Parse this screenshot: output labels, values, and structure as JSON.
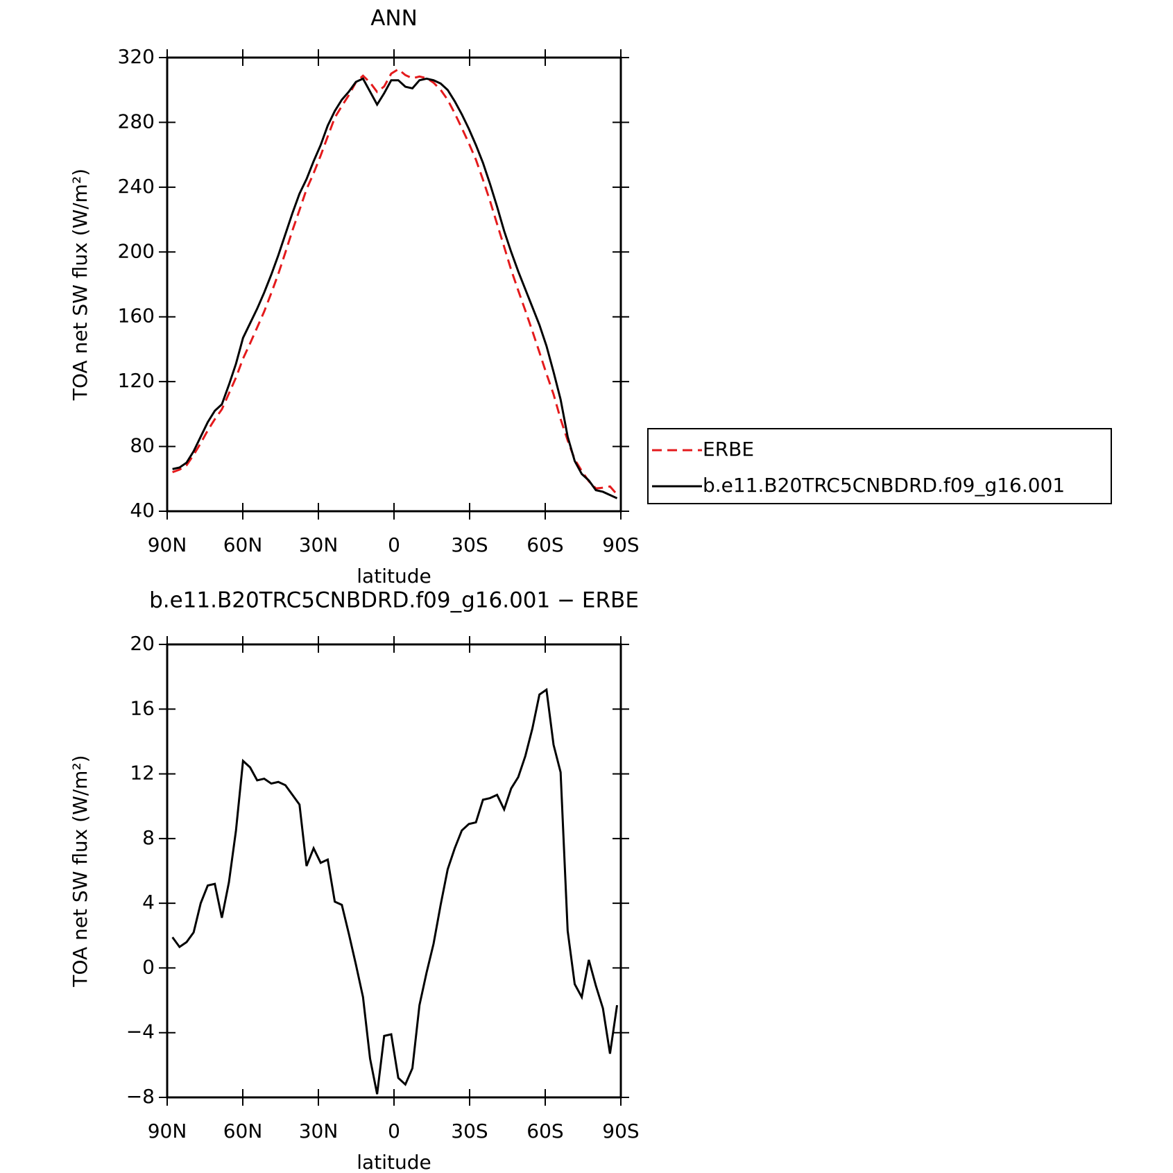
{
  "chart_data": [
    {
      "type": "line",
      "title": "ANN",
      "xlabel": "latitude",
      "ylabel": "TOA net SW flux (W/m²)",
      "x": [
        87.9,
        85.1,
        82.3,
        79.5,
        76.7,
        73.9,
        71.1,
        68.3,
        65.5,
        62.7,
        59.9,
        57.1,
        54.3,
        51.5,
        48.7,
        45.9,
        43.1,
        40.3,
        37.5,
        34.7,
        31.9,
        29.1,
        26.3,
        23.5,
        20.7,
        17.9,
        15.1,
        12.3,
        9.5,
        6.7,
        3.9,
        1.1,
        -1.7,
        -4.5,
        -7.3,
        -10.1,
        -12.9,
        -15.7,
        -18.5,
        -21.3,
        -24.1,
        -26.9,
        -29.7,
        -32.5,
        -35.3,
        -38.1,
        -40.9,
        -43.7,
        -46.5,
        -49.3,
        -52.1,
        -54.9,
        -57.7,
        -60.5,
        -63.3,
        -66.1,
        -68.9,
        -71.7,
        -74.5,
        -77.3,
        -80.1,
        -82.9,
        -85.7,
        -88.5
      ],
      "series": [
        {
          "name": "ERBE",
          "color": "#e41a1c",
          "style": "dashed",
          "values": [
            64.1,
            65.7,
            68.4,
            74.8,
            82.0,
            89.9,
            96.8,
            102.9,
            112.7,
            122.5,
            134.2,
            143.6,
            153.4,
            163.3,
            174.6,
            186.5,
            199.7,
            213.3,
            225.9,
            238.7,
            248.6,
            259.5,
            271.3,
            282.9,
            290.1,
            296.9,
            304.8,
            308.8,
            304.6,
            298.8,
            302.2,
            310.1,
            312.8,
            309.2,
            307.2,
            308.3,
            307.3,
            304.5,
            300.1,
            293.9,
            285.6,
            276.5,
            267.1,
            257.0,
            244.6,
            231.5,
            217.3,
            203.2,
            188.9,
            176.2,
            163.9,
            151.2,
            138.1,
            124.8,
            112.2,
            96.9,
            83.7,
            72.0,
            64.8,
            58.5,
            54.1,
            54.5,
            55.3,
            50.3
          ]
        },
        {
          "name": "b.e11.B20TRC5CNBDRD.f09_g16.001",
          "color": "#000000",
          "style": "solid",
          "values": [
            66,
            67,
            70,
            77,
            86,
            95,
            102,
            106,
            118,
            131,
            147,
            156,
            165,
            175,
            186,
            198,
            211,
            224,
            236,
            245,
            256,
            266,
            278,
            287,
            294,
            299,
            305,
            307,
            299,
            291,
            298,
            306,
            306,
            302,
            301,
            306,
            307,
            306,
            304,
            300,
            293,
            285,
            276,
            266,
            255,
            242,
            228,
            213,
            200,
            188,
            177,
            166,
            155,
            142,
            126,
            109,
            86,
            71,
            63,
            59,
            53,
            52,
            50,
            48
          ]
        }
      ],
      "xlim": [
        90,
        -90
      ],
      "xticks": [
        {
          "value": 90,
          "label": "90N"
        },
        {
          "value": 60,
          "label": "60N"
        },
        {
          "value": 30,
          "label": "30N"
        },
        0,
        {
          "value": -30,
          "label": "30S"
        },
        {
          "value": -60,
          "label": "60S"
        },
        {
          "value": -90,
          "label": "90S"
        }
      ],
      "ylim": [
        40,
        320
      ],
      "yticks": [
        40,
        80,
        120,
        160,
        200,
        240,
        280,
        320
      ],
      "legend": "outside right"
    },
    {
      "type": "line",
      "title": "b.e11.B20TRC5CNBDRD.f09_g16.001 − ERBE",
      "xlabel": "latitude",
      "ylabel": "TOA net SW flux (W/m²)",
      "x": [
        87.9,
        85.1,
        82.3,
        79.5,
        76.7,
        73.9,
        71.1,
        68.3,
        65.5,
        62.7,
        59.9,
        57.1,
        54.3,
        51.5,
        48.7,
        45.9,
        43.1,
        40.3,
        37.5,
        34.7,
        31.9,
        29.1,
        26.3,
        23.5,
        20.7,
        17.9,
        15.1,
        12.3,
        9.5,
        6.7,
        3.9,
        1.1,
        -1.7,
        -4.5,
        -7.3,
        -10.1,
        -12.9,
        -15.7,
        -18.5,
        -21.3,
        -24.1,
        -26.9,
        -29.7,
        -32.5,
        -35.3,
        -38.1,
        -40.9,
        -43.7,
        -46.5,
        -49.3,
        -52.1,
        -54.9,
        -57.7,
        -60.5,
        -63.3,
        -66.1,
        -68.9,
        -71.7,
        -74.5,
        -77.3,
        -80.1,
        -82.9,
        -85.7,
        -88.5
      ],
      "values": [
        1.9,
        1.3,
        1.6,
        2.2,
        4.0,
        5.1,
        5.2,
        3.1,
        5.3,
        8.5,
        12.8,
        12.4,
        11.6,
        11.7,
        11.4,
        11.5,
        11.3,
        10.7,
        10.1,
        6.3,
        7.4,
        6.5,
        6.7,
        4.1,
        3.9,
        2.1,
        0.2,
        -1.8,
        -5.6,
        -7.8,
        -4.2,
        -4.1,
        -6.8,
        -7.2,
        -6.2,
        -2.3,
        -0.3,
        1.5,
        3.9,
        6.1,
        7.4,
        8.5,
        8.9,
        9.0,
        10.4,
        10.5,
        10.7,
        9.8,
        11.1,
        11.8,
        13.1,
        14.8,
        16.9,
        17.2,
        13.8,
        12.1,
        2.3,
        -1.0,
        -1.8,
        0.5,
        -1.1,
        -2.5,
        -5.3,
        -2.3
      ],
      "color": "#000000",
      "xlim": [
        90,
        -90
      ],
      "xticks": [
        {
          "value": 90,
          "label": "90N"
        },
        {
          "value": 60,
          "label": "60N"
        },
        {
          "value": 30,
          "label": "30N"
        },
        0,
        {
          "value": -30,
          "label": "30S"
        },
        {
          "value": -60,
          "label": "60S"
        },
        {
          "value": -90,
          "label": "90S"
        }
      ],
      "ylim": [
        -8,
        20
      ],
      "yticks": [
        {
          "value": -8,
          "label": "−8"
        },
        {
          "value": -4,
          "label": "−4"
        },
        0,
        4,
        8,
        12,
        16,
        20
      ]
    }
  ]
}
